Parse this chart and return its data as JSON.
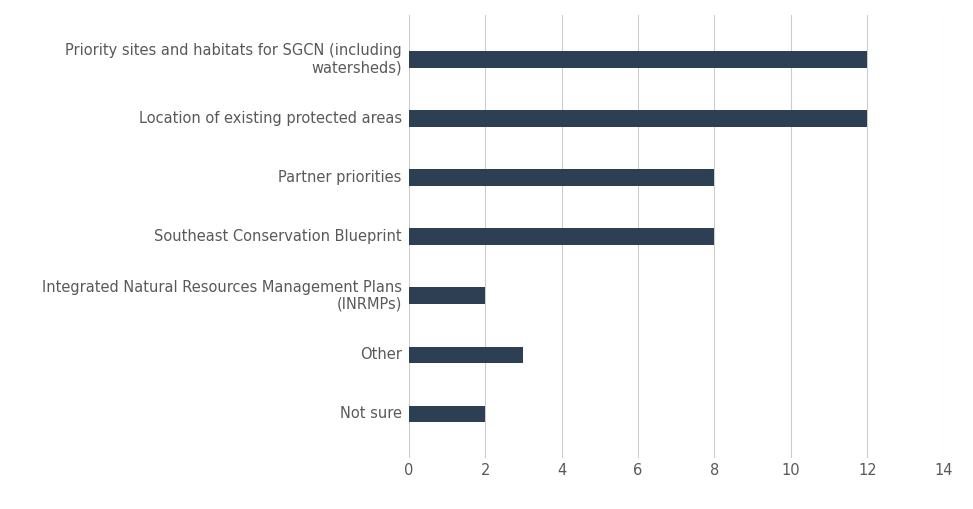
{
  "categories": [
    "Priority sites and habitats for SGCN (including\nwatersheds)",
    "Location of existing protected areas",
    "Partner priorities",
    "Southeast Conservation Blueprint",
    "Integrated Natural Resources Management Plans\n(INRMPs)",
    "Other",
    "Not sure"
  ],
  "values": [
    12,
    12,
    8,
    8,
    2,
    3,
    2
  ],
  "bar_color": "#2d3f52",
  "xlim": [
    0,
    14
  ],
  "xticks": [
    0,
    2,
    4,
    6,
    8,
    10,
    12,
    14
  ],
  "bar_height": 0.28,
  "background_color": "#ffffff",
  "grid_color": "#cccccc",
  "label_color": "#595959",
  "label_fontsize": 10.5,
  "tick_fontsize": 10.5,
  "figsize": [
    9.73,
    5.09
  ],
  "dpi": 100
}
